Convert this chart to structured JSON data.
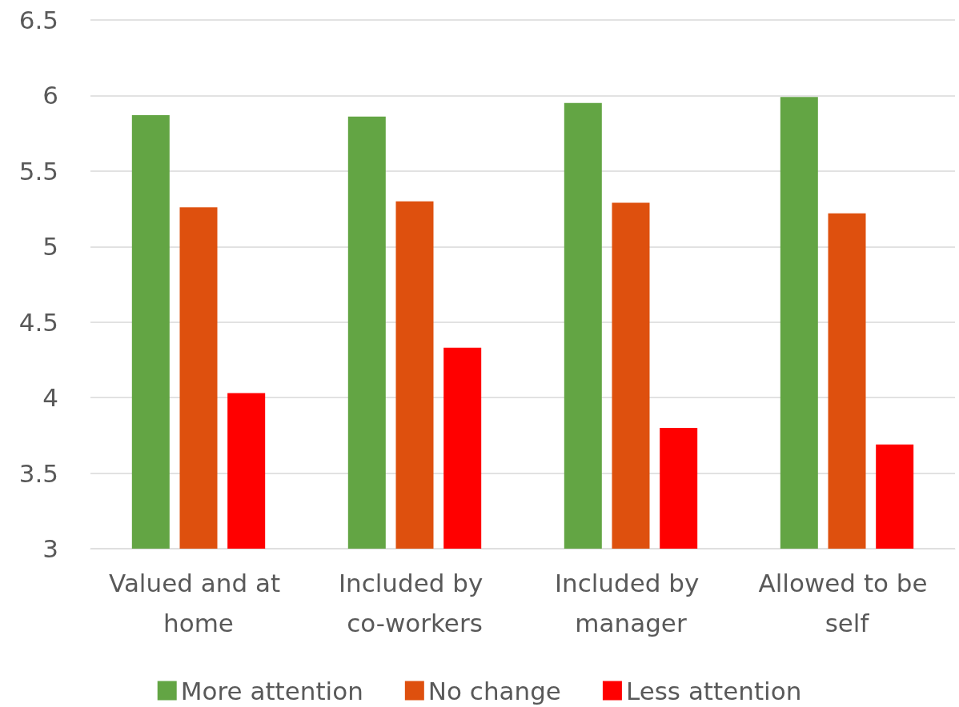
{
  "chart_data": {
    "type": "bar",
    "categories": [
      "Valued and at home",
      "Included by co-workers",
      "Included by manager",
      "Allowed to be self"
    ],
    "series": [
      {
        "name": "More attention",
        "color": "#63a544",
        "values": [
          5.87,
          5.86,
          5.95,
          5.99
        ]
      },
      {
        "name": "No change",
        "color": "#de500e",
        "values": [
          5.26,
          5.3,
          5.29,
          5.22
        ]
      },
      {
        "name": "Less attention",
        "color": "#ff0000",
        "values": [
          4.03,
          4.33,
          3.8,
          3.69
        ]
      }
    ],
    "ylim": [
      3,
      6.5
    ],
    "yticks": [
      3,
      3.5,
      4,
      4.5,
      5,
      5.5,
      6,
      6.5
    ],
    "grid": "y",
    "legend": "bottom"
  }
}
